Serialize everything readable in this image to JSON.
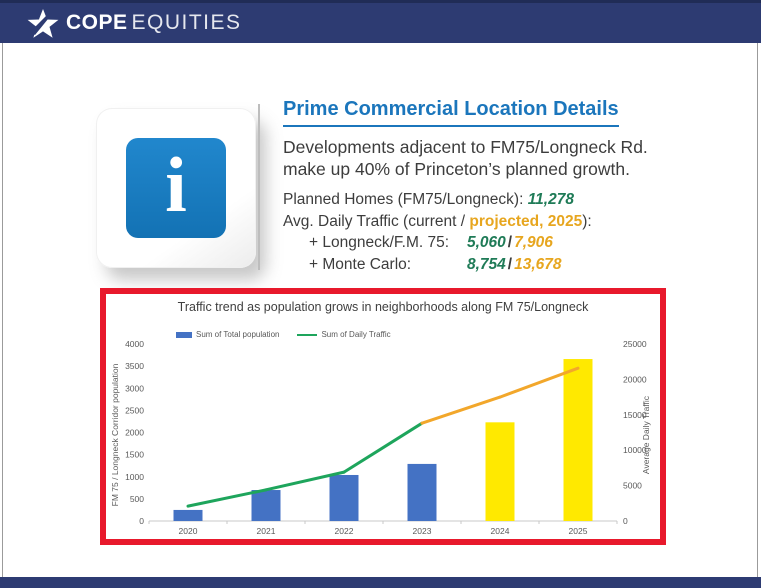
{
  "header": {
    "logo_bold": "COPE",
    "logo_light": "EQUITIES"
  },
  "info_panel": {
    "icon_glyph": "i",
    "title": "Prime Commercial Location Details",
    "body_line1": "Developments adjacent to FM75/Longneck Rd.",
    "body_line2": "make up 40% of Princeton’s planned growth.",
    "stats": {
      "planned_homes_label": "Planned Homes (FM75/Longneck): ",
      "planned_homes_value": "11,278",
      "traffic_label_prefix": "Avg. Daily Traffic (current / ",
      "traffic_label_highlight": "projected, 2025",
      "traffic_label_suffix": "):",
      "separator": "/",
      "rows": [
        {
          "label": "+ Longneck/F.M. 75:",
          "current": "5,060",
          "projected": "7,906"
        },
        {
          "label": "+ Monte Carlo:",
          "current": "8,754",
          "projected": "13,678"
        }
      ]
    }
  },
  "chart_data": {
    "type": "bar",
    "subtype": "combo bar + line, dual axis",
    "title": "Traffic trend as population grows in neighborhoods along FM 75/Longneck",
    "categories": [
      "2020",
      "2021",
      "2022",
      "2023",
      "2024",
      "2025"
    ],
    "series": [
      {
        "name": "Sum of Total population",
        "type": "bar",
        "axis": "left",
        "values": [
          250,
          700,
          1040,
          1290,
          2230,
          3660
        ],
        "bar_colors": [
          "#4472c4",
          "#4472c4",
          "#4472c4",
          "#4472c4",
          "#ffe900",
          "#ffe900"
        ]
      },
      {
        "name": "Sum of Daily Traffic",
        "type": "line",
        "axis": "right",
        "values": [
          2100,
          4400,
          6900,
          13814,
          17500,
          21584
        ],
        "segment_colors": [
          "#1ea55c",
          "#1ea55c",
          "#1ea55c",
          "#f2a72b",
          "#f2a72b"
        ]
      }
    ],
    "left_axis": {
      "label": "FM 75 / Longneck Corridor population",
      "min": 0,
      "max": 4000,
      "ticks": [
        0,
        500,
        1000,
        1500,
        2000,
        2500,
        3000,
        3500,
        4000
      ]
    },
    "right_axis": {
      "label": "Average Daily Traffic",
      "min": 0,
      "max": 25000,
      "ticks": [
        0,
        5000,
        10000,
        15000,
        20000,
        25000
      ]
    },
    "legend": [
      "Sum of Total population",
      "Sum of Daily Traffic"
    ],
    "grid": false,
    "legend_position": "top-left"
  },
  "colors": {
    "navy": "#2d3b72",
    "title_blue": "#1b76bc",
    "icon_blue": "#1878be",
    "accent_green": "#1f7b57",
    "accent_orange": "#e7a61f",
    "frame_red": "#e8192c",
    "bar_blue": "#4472c4",
    "bar_yellow": "#ffe900",
    "line_green": "#1ea55c",
    "line_orange": "#f2a72b"
  }
}
